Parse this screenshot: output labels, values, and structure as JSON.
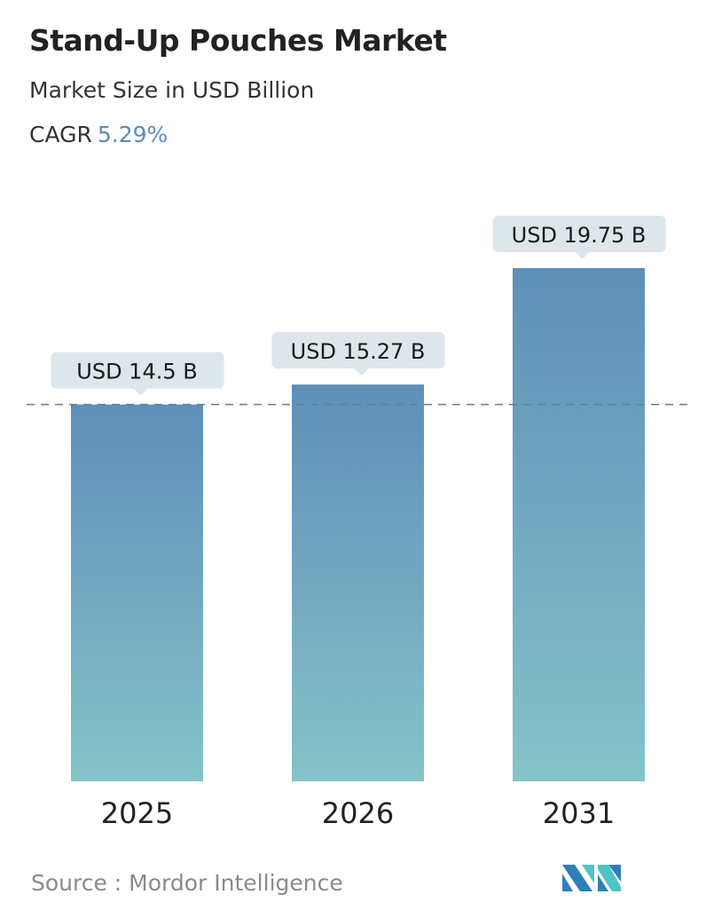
{
  "header": {
    "title": "Stand-Up Pouches Market",
    "subtitle": "Market Size in USD Billion",
    "cagr_label": "CAGR",
    "cagr_value": "5.29%"
  },
  "chart_data": {
    "type": "bar",
    "categories": [
      "2025",
      "2026",
      "2031"
    ],
    "values": [
      14.5,
      15.27,
      19.75
    ],
    "data_labels": [
      "USD 14.5 B",
      "USD 15.27 B",
      "USD 19.75 B"
    ],
    "ylim": [
      0,
      19.75
    ],
    "reference_line": 14.5,
    "grid": false,
    "colors": {
      "bar_top": "#5e8fb8",
      "bar_bottom": "#85c3c9",
      "callout": "#dde6ea",
      "reference_line": "#5f7f99",
      "accent": "#5b8db5"
    }
  },
  "footer": {
    "source": "Source :  Mordor Intelligence",
    "logo_text": "MI"
  }
}
